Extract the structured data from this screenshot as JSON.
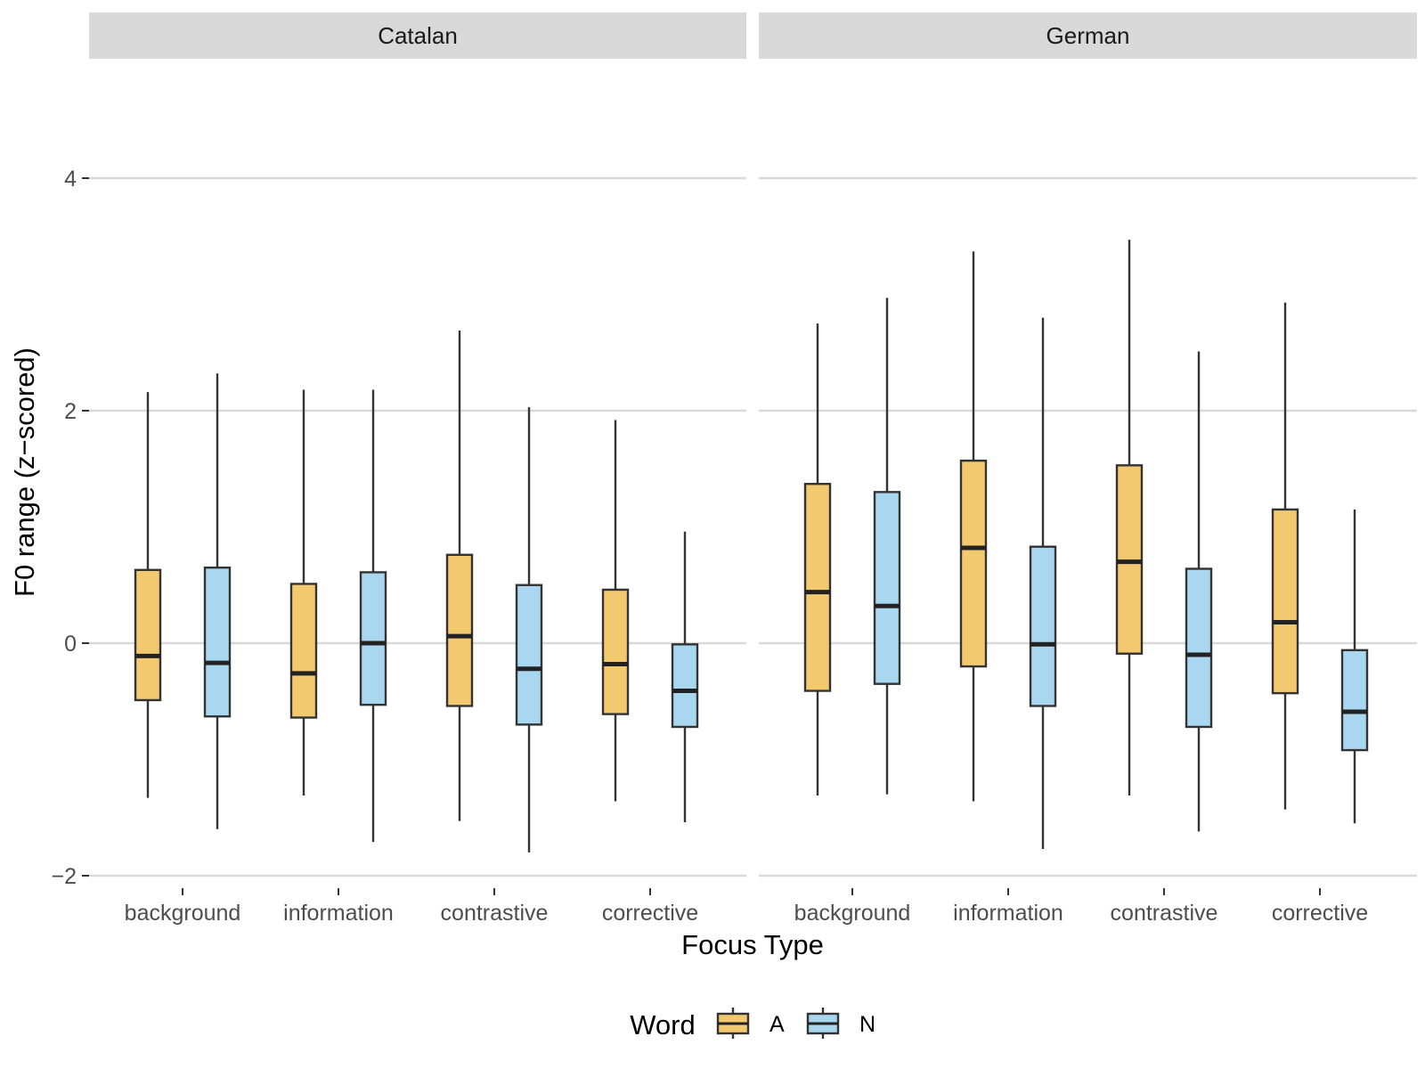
{
  "chart_data": {
    "type": "boxplot",
    "facets": [
      "Catalan",
      "German"
    ],
    "categories": [
      "background",
      "information",
      "contrastive",
      "corrective"
    ],
    "xlabel": "Focus Type",
    "ylabel": "F0 range (z−scored)",
    "ylim": [
      -2.2,
      5.0
    ],
    "yticks": [
      -2,
      0,
      2,
      4
    ],
    "ytick_labels": [
      "−2",
      "0",
      "2",
      "4"
    ],
    "grid": true,
    "legend": {
      "title": "Word",
      "position": "bottom",
      "entries": [
        {
          "label": "A",
          "color": "#f2c96f"
        },
        {
          "label": "N",
          "color": "#a9d7f0"
        }
      ]
    },
    "series": [
      {
        "name": "A",
        "color": "#f2c96f",
        "data": {
          "Catalan": [
            {
              "category": "background",
              "whisker_low": -1.33,
              "q1": -0.49,
              "median": -0.11,
              "q3": 0.63,
              "whisker_high": 2.16
            },
            {
              "category": "information",
              "whisker_low": -1.31,
              "q1": -0.64,
              "median": -0.26,
              "q3": 0.51,
              "whisker_high": 2.18
            },
            {
              "category": "contrastive",
              "whisker_low": -1.53,
              "q1": -0.54,
              "median": 0.06,
              "q3": 0.76,
              "whisker_high": 2.69
            },
            {
              "category": "corrective",
              "whisker_low": -1.36,
              "q1": -0.61,
              "median": -0.18,
              "q3": 0.46,
              "whisker_high": 1.92
            }
          ],
          "German": [
            {
              "category": "background",
              "whisker_low": -1.31,
              "q1": -0.41,
              "median": 0.44,
              "q3": 1.37,
              "whisker_high": 2.75
            },
            {
              "category": "information",
              "whisker_low": -1.36,
              "q1": -0.2,
              "median": 0.82,
              "q3": 1.57,
              "whisker_high": 3.37
            },
            {
              "category": "contrastive",
              "whisker_low": -1.31,
              "q1": -0.09,
              "median": 0.7,
              "q3": 1.53,
              "whisker_high": 3.47
            },
            {
              "category": "corrective",
              "whisker_low": -1.43,
              "q1": -0.43,
              "median": 0.18,
              "q3": 1.15,
              "whisker_high": 2.93
            }
          ]
        }
      },
      {
        "name": "N",
        "color": "#a9d7f0",
        "data": {
          "Catalan": [
            {
              "category": "background",
              "whisker_low": -1.6,
              "q1": -0.63,
              "median": -0.17,
              "q3": 0.65,
              "whisker_high": 2.32
            },
            {
              "category": "information",
              "whisker_low": -1.71,
              "q1": -0.53,
              "median": 0.0,
              "q3": 0.61,
              "whisker_high": 2.18
            },
            {
              "category": "contrastive",
              "whisker_low": -1.8,
              "q1": -0.7,
              "median": -0.22,
              "q3": 0.5,
              "whisker_high": 2.03
            },
            {
              "category": "corrective",
              "whisker_low": -1.54,
              "q1": -0.72,
              "median": -0.41,
              "q3": -0.01,
              "whisker_high": 0.96
            }
          ],
          "German": [
            {
              "category": "background",
              "whisker_low": -1.3,
              "q1": -0.35,
              "median": 0.32,
              "q3": 1.3,
              "whisker_high": 2.97
            },
            {
              "category": "information",
              "whisker_low": -1.77,
              "q1": -0.54,
              "median": -0.01,
              "q3": 0.83,
              "whisker_high": 2.8
            },
            {
              "category": "contrastive",
              "whisker_low": -1.62,
              "q1": -0.72,
              "median": -0.1,
              "q3": 0.64,
              "whisker_high": 2.51
            },
            {
              "category": "corrective",
              "whisker_low": -1.55,
              "q1": -0.92,
              "median": -0.59,
              "q3": -0.06,
              "whisker_high": 1.15
            }
          ]
        }
      }
    ]
  }
}
